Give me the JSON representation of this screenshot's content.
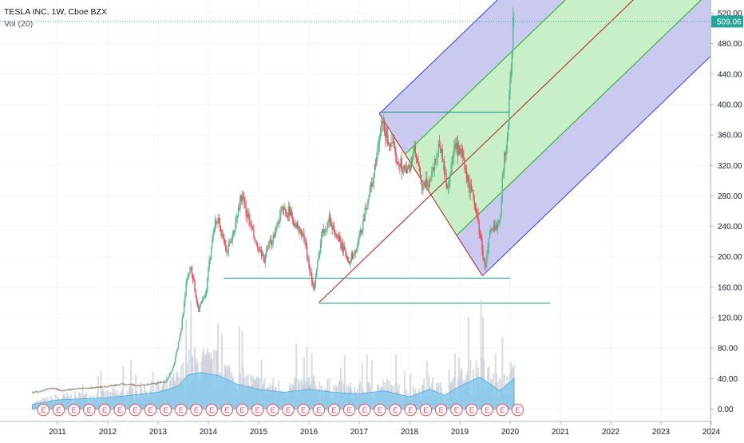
{
  "legend": {
    "title": "TESLA INC, 1W, Cboe BZX",
    "volume_label": "Vol (20)"
  },
  "colors": {
    "up": "#53b987",
    "down": "#eb4d5c",
    "volume": "#7ec7ee",
    "volume_bars": "#c8ccd6",
    "fork_outer": "#3b3bd6",
    "fork_outer_fill": "#c7c7f0",
    "fork_inner": "#20b020",
    "fork_inner_fill": "#c9efc9",
    "median": "#b02020",
    "hline": "#30a090",
    "last_price": "#26a69a",
    "earnings": "#eb4d5c"
  },
  "chart_data": {
    "type": "candlestick",
    "symbol": "TESLA INC",
    "interval": "1W",
    "exchange": "Cboe BZX",
    "x_ticks": [
      "2011",
      "2012",
      "2013",
      "2014",
      "2015",
      "2016",
      "2017",
      "2018",
      "2019",
      "2020",
      "2021",
      "2022",
      "2023",
      "2024"
    ],
    "y_ticks": [
      "0.00",
      "40.00",
      "80.00",
      "120.00",
      "160.00",
      "200.00",
      "240.00",
      "280.00",
      "320.00",
      "360.00",
      "400.00",
      "440.00",
      "480.00",
      "520.00"
    ],
    "x_range": [
      2010.4,
      2024.0
    ],
    "y_range": [
      0,
      530
    ],
    "last_price": "509.06",
    "price_path": [
      [
        2010.5,
        22
      ],
      [
        2010.7,
        24
      ],
      [
        2010.85,
        28
      ],
      [
        2011.1,
        24
      ],
      [
        2011.4,
        27
      ],
      [
        2011.7,
        28
      ],
      [
        2012.0,
        30
      ],
      [
        2012.3,
        33
      ],
      [
        2012.6,
        31
      ],
      [
        2012.9,
        33
      ],
      [
        2013.15,
        36
      ],
      [
        2013.3,
        55
      ],
      [
        2013.45,
        100
      ],
      [
        2013.55,
        160
      ],
      [
        2013.65,
        190
      ],
      [
        2013.8,
        130
      ],
      [
        2013.95,
        150
      ],
      [
        2014.1,
        240
      ],
      [
        2014.2,
        250
      ],
      [
        2014.35,
        205
      ],
      [
        2014.5,
        230
      ],
      [
        2014.65,
        280
      ],
      [
        2014.8,
        250
      ],
      [
        2014.95,
        215
      ],
      [
        2015.1,
        195
      ],
      [
        2015.25,
        220
      ],
      [
        2015.45,
        260
      ],
      [
        2015.6,
        260
      ],
      [
        2015.75,
        240
      ],
      [
        2015.9,
        225
      ],
      [
        2016.1,
        155
      ],
      [
        2016.25,
        230
      ],
      [
        2016.4,
        250
      ],
      [
        2016.6,
        220
      ],
      [
        2016.8,
        195
      ],
      [
        2016.95,
        210
      ],
      [
        2017.15,
        270
      ],
      [
        2017.3,
        310
      ],
      [
        2017.45,
        375
      ],
      [
        2017.6,
        350
      ],
      [
        2017.75,
        330
      ],
      [
        2017.95,
        310
      ],
      [
        2018.1,
        340
      ],
      [
        2018.25,
        290
      ],
      [
        2018.4,
        300
      ],
      [
        2018.6,
        350
      ],
      [
        2018.75,
        290
      ],
      [
        2018.9,
        345
      ],
      [
        2019.05,
        330
      ],
      [
        2019.15,
        300
      ],
      [
        2019.3,
        270
      ],
      [
        2019.42,
        220
      ],
      [
        2019.5,
        185
      ],
      [
        2019.6,
        230
      ],
      [
        2019.72,
        240
      ],
      [
        2019.8,
        255
      ],
      [
        2019.88,
        330
      ],
      [
        2019.95,
        360
      ],
      [
        2020.0,
        430
      ],
      [
        2020.05,
        500
      ],
      [
        2020.08,
        509
      ]
    ],
    "volume_profile": [
      [
        2010.5,
        6
      ],
      [
        2011.0,
        12
      ],
      [
        2012.0,
        15
      ],
      [
        2013.0,
        22
      ],
      [
        2013.4,
        30
      ],
      [
        2013.6,
        45
      ],
      [
        2013.85,
        48
      ],
      [
        2014.2,
        44
      ],
      [
        2014.6,
        32
      ],
      [
        2015.0,
        26
      ],
      [
        2015.5,
        22
      ],
      [
        2016.0,
        26
      ],
      [
        2016.5,
        22
      ],
      [
        2017.0,
        20
      ],
      [
        2017.5,
        24
      ],
      [
        2018.0,
        16
      ],
      [
        2018.4,
        26
      ],
      [
        2018.7,
        18
      ],
      [
        2019.0,
        30
      ],
      [
        2019.4,
        42
      ],
      [
        2019.8,
        24
      ],
      [
        2020.08,
        40
      ]
    ],
    "earnings_markers": 32,
    "earnings_label": "E",
    "pitchfork": {
      "handle": [
        2016.2,
        140
      ],
      "p1": [
        2017.4,
        388
      ],
      "p2": [
        2019.45,
        175
      ]
    },
    "horizontal_lines": [
      {
        "x": [
          2014.3,
          2020.0
        ],
        "y": 172
      },
      {
        "x": [
          2016.2,
          2020.8
        ],
        "y": 139
      },
      {
        "x": [
          2017.4,
          2020.0
        ],
        "y": 390
      }
    ]
  }
}
